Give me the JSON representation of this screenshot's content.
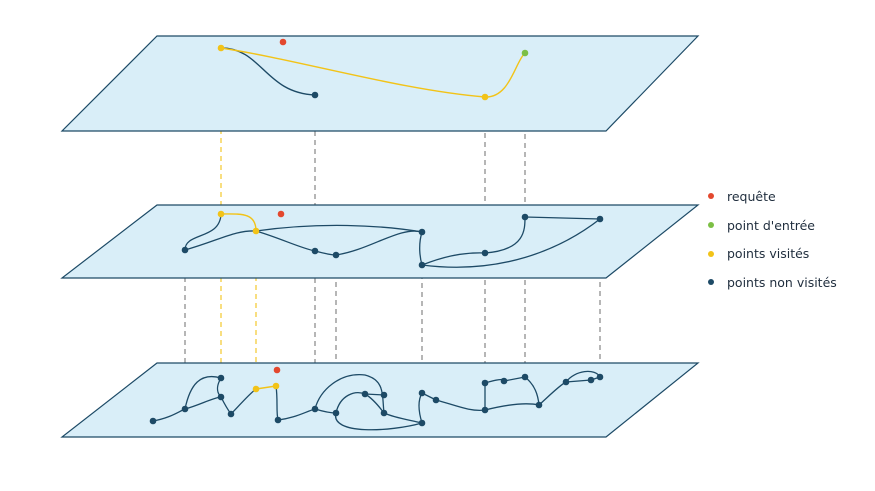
{
  "colors": {
    "plane_fill": "#d9eef8",
    "plane_stroke": "#1d4a66",
    "edge": "#1d4a66",
    "path": "#f2c318",
    "connector": "#7a7a7a"
  },
  "legend": {
    "items": [
      {
        "label": "requête",
        "color": "#e3482e"
      },
      {
        "label": "point d'entrée",
        "color": "#7cbf45"
      },
      {
        "label": "points visités",
        "color": "#f2c318"
      },
      {
        "label": "points non visités",
        "color": "#1d4a66"
      }
    ]
  }
}
